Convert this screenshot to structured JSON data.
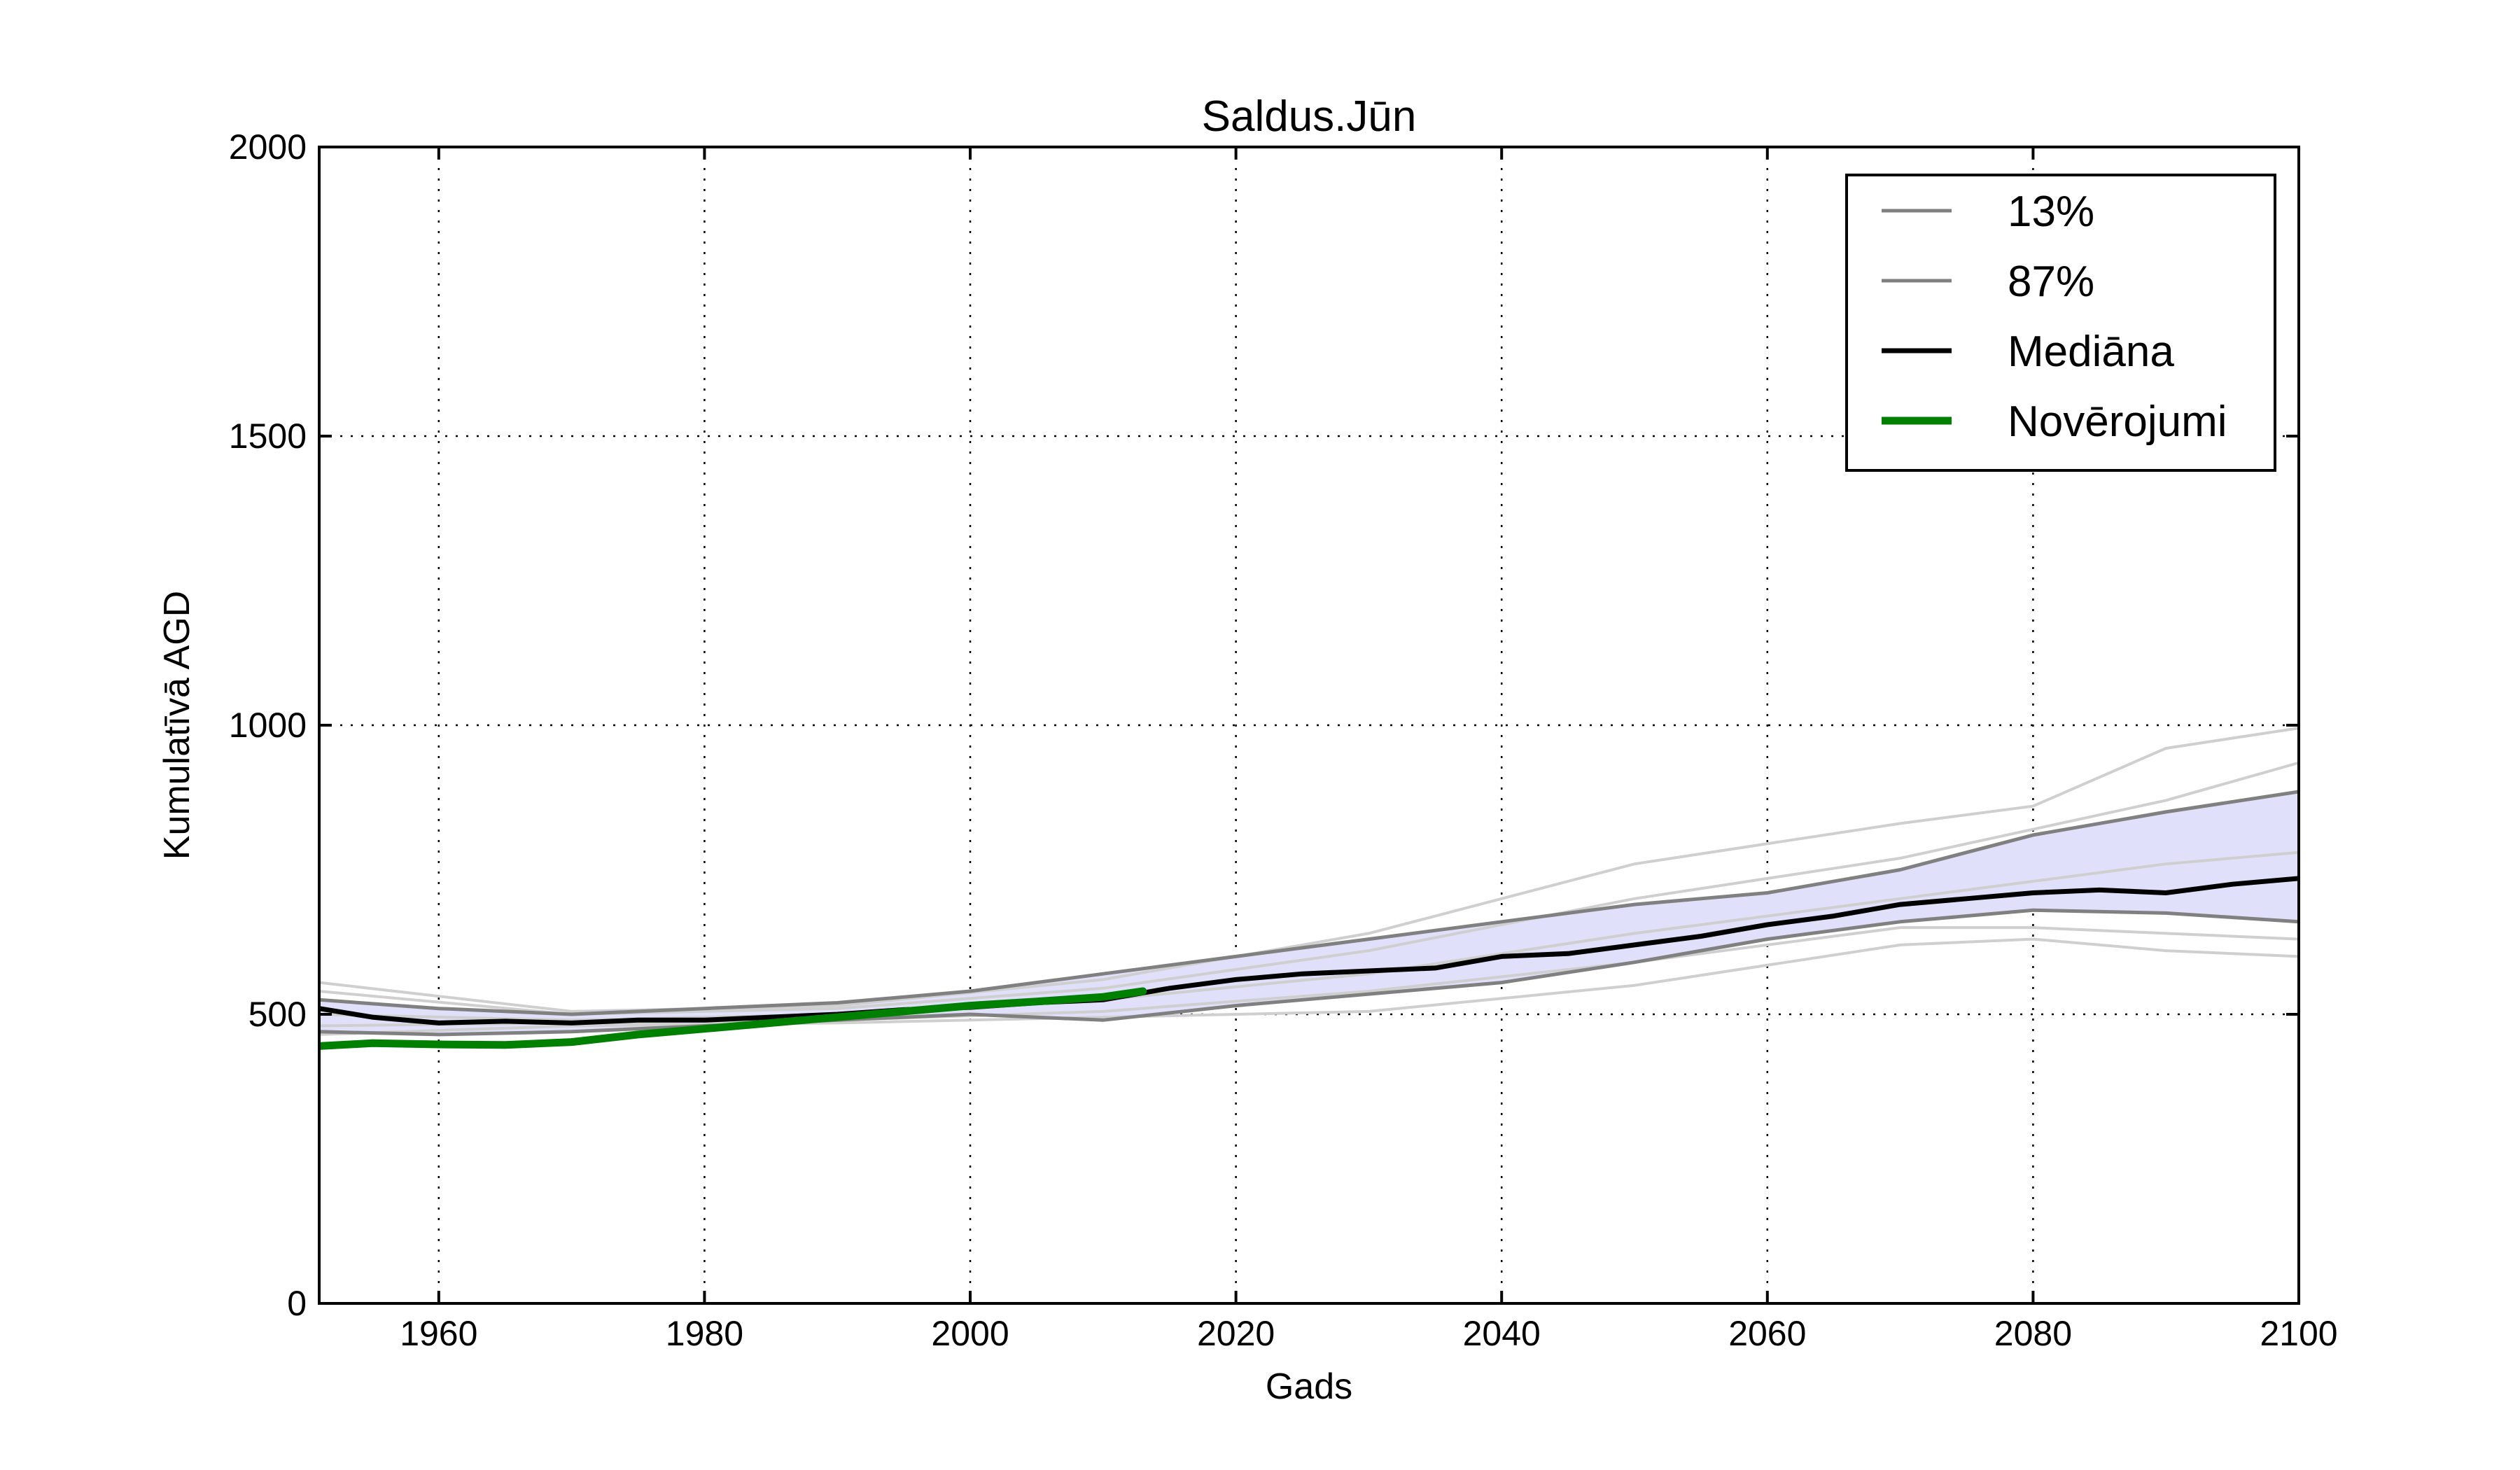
{
  "chart_data": {
    "type": "line",
    "title": "Saldus.Jūn",
    "xlabel": "Gads",
    "ylabel": "Kumulatīvā AGD",
    "xlim": [
      1951,
      2100
    ],
    "ylim": [
      0,
      2000
    ],
    "xticks": [
      1960,
      1980,
      2000,
      2020,
      2040,
      2060,
      2080,
      2100
    ],
    "yticks": [
      0,
      500,
      1000,
      1500,
      2000
    ],
    "grid": true,
    "legend_position": "top-right",
    "band_color": "#e0e0fb",
    "series": [
      {
        "name": "13%",
        "color": "#808080",
        "x": [
          1951,
          1960,
          1970,
          1980,
          1990,
          2000,
          2010,
          2020,
          2030,
          2040,
          2050,
          2060,
          2070,
          2080,
          2090,
          2100
        ],
        "y": [
          470,
          465,
          470,
          480,
          490,
          500,
          490,
          515,
          535,
          555,
          590,
          630,
          660,
          680,
          675,
          660
        ]
      },
      {
        "name": "87%",
        "color": "#808080",
        "x": [
          1951,
          1960,
          1970,
          1980,
          1990,
          2000,
          2010,
          2020,
          2030,
          2040,
          2050,
          2060,
          2070,
          2080,
          2090,
          2100
        ],
        "y": [
          525,
          510,
          500,
          510,
          520,
          540,
          570,
          600,
          630,
          660,
          690,
          710,
          750,
          810,
          850,
          885
        ]
      },
      {
        "name": "Mediāna",
        "color": "#000000",
        "x": [
          1951,
          1955,
          1960,
          1965,
          1970,
          1975,
          1980,
          1985,
          1990,
          1995,
          2000,
          2005,
          2010,
          2015,
          2020,
          2025,
          2030,
          2035,
          2040,
          2045,
          2050,
          2055,
          2060,
          2065,
          2070,
          2075,
          2080,
          2085,
          2090,
          2095,
          2100
        ],
        "y": [
          510,
          495,
          485,
          488,
          485,
          490,
          490,
          495,
          500,
          508,
          512,
          520,
          525,
          545,
          560,
          570,
          575,
          580,
          600,
          605,
          620,
          635,
          655,
          670,
          690,
          700,
          710,
          715,
          710,
          725,
          735
        ]
      },
      {
        "name": "Novērojumi",
        "color": "#008000",
        "x": [
          1951,
          1955,
          1960,
          1965,
          1970,
          1975,
          1980,
          1985,
          1990,
          1995,
          2000,
          2005,
          2010,
          2013
        ],
        "y": [
          445,
          450,
          448,
          447,
          452,
          465,
          475,
          485,
          495,
          505,
          515,
          522,
          530,
          540
        ]
      }
    ],
    "ensemble_members": [
      {
        "x": [
          1951,
          1970,
          1990,
          2010,
          2030,
          2050,
          2070,
          2080,
          2090,
          2100
        ],
        "y": [
          555,
          505,
          515,
          560,
          640,
          760,
          830,
          860,
          960,
          995
        ]
      },
      {
        "x": [
          1951,
          1970,
          1990,
          2010,
          2030,
          2050,
          2070,
          2080,
          2090,
          2100
        ],
        "y": [
          540,
          500,
          510,
          545,
          610,
          700,
          770,
          820,
          870,
          935
        ]
      },
      {
        "x": [
          1951,
          1970,
          1990,
          2010,
          2030,
          2050,
          2070,
          2080,
          2090,
          2100
        ],
        "y": [
          500,
          490,
          500,
          525,
          570,
          640,
          700,
          730,
          760,
          780
        ]
      },
      {
        "x": [
          1951,
          1970,
          1990,
          2010,
          2030,
          2050,
          2070,
          2080,
          2090,
          2100
        ],
        "y": [
          480,
          485,
          490,
          505,
          540,
          590,
          650,
          650,
          640,
          630
        ]
      },
      {
        "x": [
          1951,
          1970,
          1990,
          2010,
          2030,
          2050,
          2070,
          2080,
          2090,
          2100
        ],
        "y": [
          465,
          480,
          485,
          495,
          505,
          550,
          620,
          630,
          610,
          600
        ]
      }
    ]
  }
}
